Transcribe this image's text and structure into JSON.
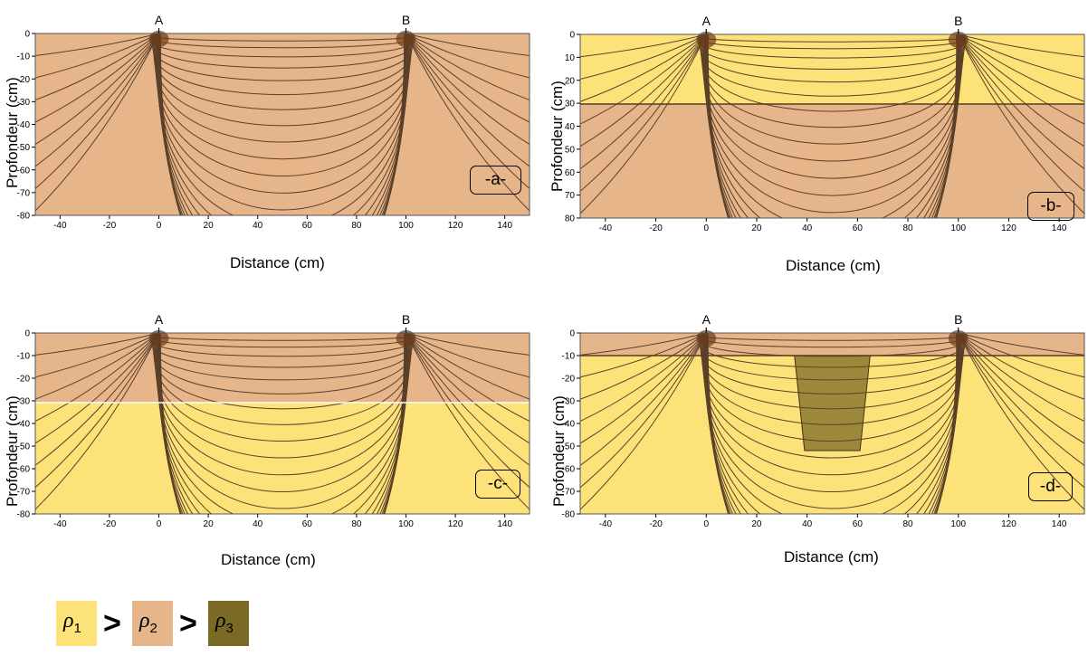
{
  "colors": {
    "rho1": "#fde27a",
    "rho2": "#e6b58a",
    "rho3": "#7a6a26",
    "line": "#5a4028"
  },
  "panels": [
    {
      "id": "a",
      "label": "-a-",
      "ylabel": "Profondeur (cm)",
      "xlabel": "Distance (cm)",
      "electrodes": [
        "A",
        "B"
      ],
      "x_ticks": [
        "-40",
        "-20",
        "0",
        "20",
        "40",
        "60",
        "80",
        "100",
        "120",
        "140"
      ],
      "y_ticks": [
        "0",
        "-10",
        "-20",
        "-30",
        "-40",
        "-50",
        "-60",
        "-70",
        "-80"
      ],
      "layers": [
        "rho2"
      ]
    },
    {
      "id": "b",
      "label": "-b-",
      "ylabel": "Profondeur (cm)",
      "xlabel": "Distance (cm)",
      "electrodes": [
        "A",
        "B"
      ],
      "x_ticks": [
        "-40",
        "-20",
        "0",
        "20",
        "40",
        "60",
        "80",
        "100",
        "120",
        "140"
      ],
      "y_ticks": [
        "0",
        "10",
        "20",
        "30",
        "40",
        "50",
        "60",
        "70",
        "80"
      ],
      "layers": [
        "rho1",
        "rho2"
      ]
    },
    {
      "id": "c",
      "label": "-c-",
      "ylabel": "Profondeur (cm)",
      "xlabel": "Distance (cm)",
      "electrodes": [
        "A",
        "B"
      ],
      "x_ticks": [
        "-40",
        "-20",
        "0",
        "20",
        "40",
        "60",
        "80",
        "100",
        "120",
        "140"
      ],
      "y_ticks": [
        "0",
        "-10",
        "-20",
        "-30",
        "-40",
        "-50",
        "-60",
        "-70",
        "-80"
      ],
      "layers": [
        "rho2",
        "rho1"
      ]
    },
    {
      "id": "d",
      "label": "-d-",
      "ylabel": "Profondeur (cm)",
      "xlabel": "Distance (cm)",
      "electrodes": [
        "A",
        "B"
      ],
      "x_ticks": [
        "-40",
        "-20",
        "0",
        "20",
        "40",
        "60",
        "80",
        "100",
        "120",
        "140"
      ],
      "y_ticks": [
        "0",
        "-10",
        "-20",
        "-30",
        "-40",
        "-50",
        "-60",
        "-70",
        "-80"
      ],
      "layers": [
        "rho2",
        "rho1",
        "rho3"
      ]
    }
  ],
  "legend": {
    "symbol": "ρ",
    "sub1": "1",
    "sub2": "2",
    "sub3": "3",
    "gt": ">"
  }
}
